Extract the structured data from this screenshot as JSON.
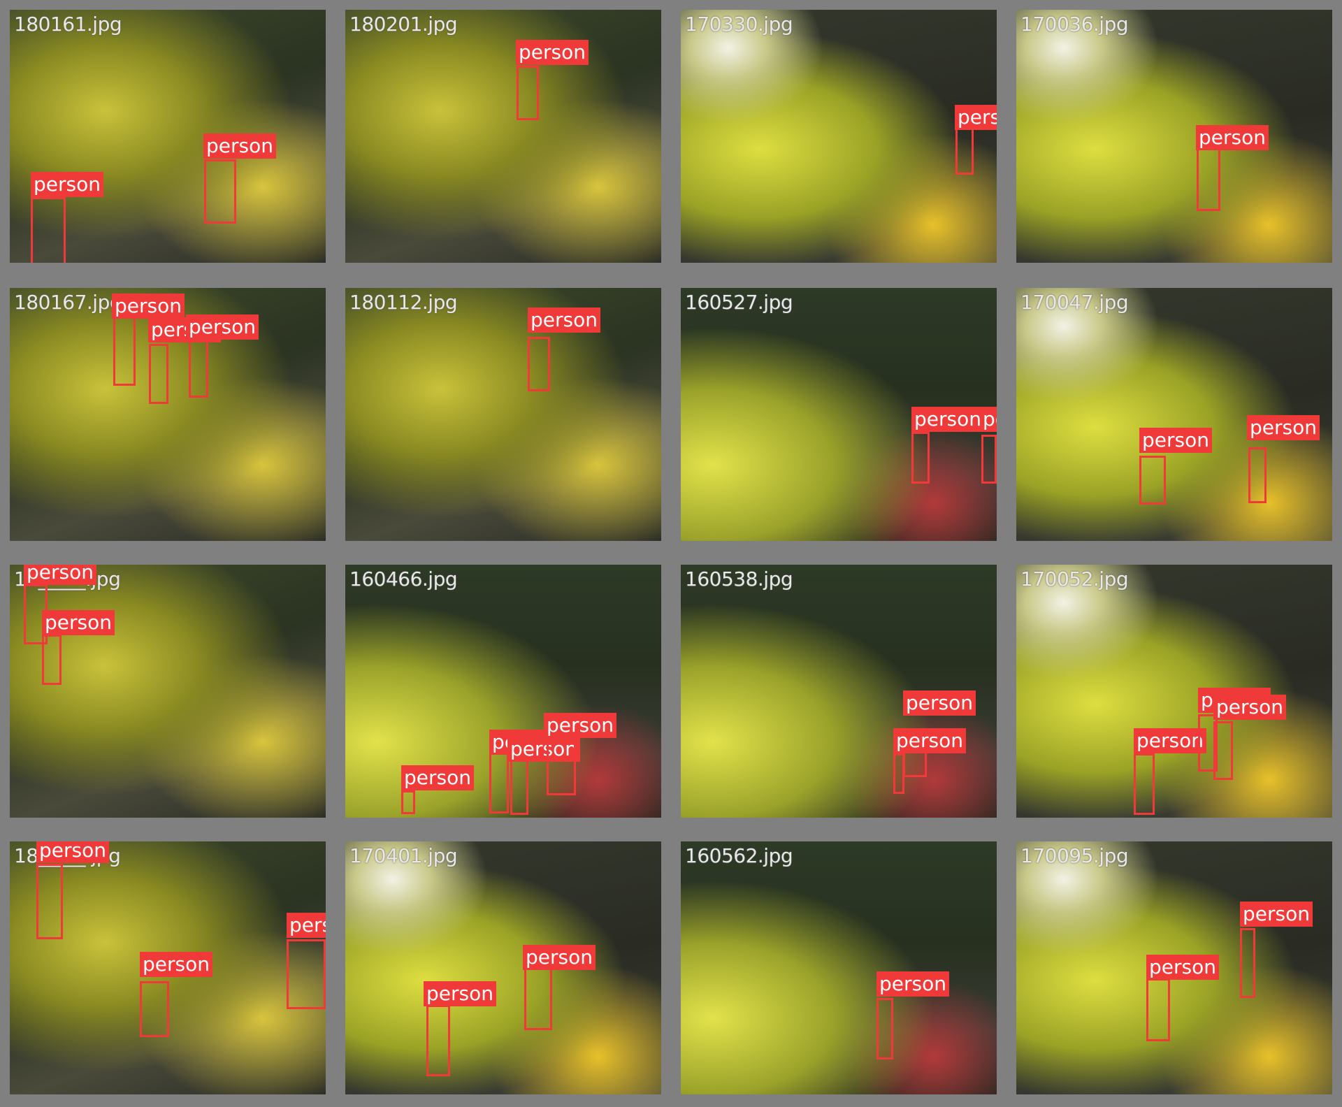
{
  "tiles": [
    {
      "filename": "180161.jpg",
      "labels": [
        "person",
        "person"
      ]
    },
    {
      "filename": "180201.jpg",
      "labels": [
        "person"
      ]
    },
    {
      "filename": "170330.jpg",
      "labels": [
        "person"
      ]
    },
    {
      "filename": "170036.jpg",
      "labels": [
        "person"
      ]
    },
    {
      "filename": "180167.jpg",
      "labels": [
        "person",
        "person",
        "person"
      ]
    },
    {
      "filename": "180112.jpg",
      "labels": [
        "person"
      ]
    },
    {
      "filename": "160527.jpg",
      "labels": [
        "person",
        "person"
      ]
    },
    {
      "filename": "170047.jpg",
      "labels": [
        "person",
        "person"
      ]
    },
    {
      "filename": "18_____.jpg",
      "labels": [
        "person",
        "person"
      ]
    },
    {
      "filename": "160466.jpg",
      "labels": [
        "person",
        "person",
        "person",
        "person"
      ]
    },
    {
      "filename": "160538.jpg",
      "labels": [
        "person",
        "person"
      ]
    },
    {
      "filename": "170052.jpg",
      "labels": [
        "person",
        "person",
        "person"
      ]
    },
    {
      "filename": "18_____.jpg",
      "labels": [
        "person",
        "person",
        "person"
      ]
    },
    {
      "filename": "170401.jpg",
      "labels": [
        "person",
        "person"
      ]
    },
    {
      "filename": "160562.jpg",
      "labels": [
        "person"
      ]
    },
    {
      "filename": "170095.jpg",
      "labels": [
        "person",
        "person"
      ]
    }
  ],
  "colors": {
    "box": "#f03a3a",
    "label_text": "#ffffff",
    "filename_text": "#e8e8e8",
    "gutter": "#808080"
  }
}
